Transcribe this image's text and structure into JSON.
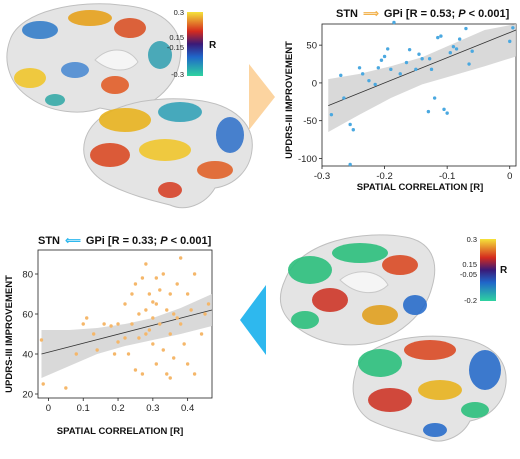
{
  "colors": {
    "arrow_right": "#fcd4a0",
    "arrow_left": "#2eb8ee",
    "dots_top": "#4aa8e0",
    "dots_bottom": "#f5b76a",
    "ci_band": "#d2d2d2"
  },
  "brain_top": {
    "icon": "brain-3d-render",
    "colorbar": {
      "ticks": [
        "0.3",
        "0.15",
        "-0.15",
        "-0.3"
      ],
      "label": "R"
    }
  },
  "brain_bottom": {
    "icon": "brain-3d-render",
    "colorbar": {
      "ticks": [
        "0.3",
        "0.15",
        "-0.05",
        "-0.2"
      ],
      "label": "R"
    }
  },
  "chart_data": [
    {
      "type": "scatter",
      "title_parts": {
        "a": "STN",
        "b": "GPi [R = 0.53; ",
        "p": "P",
        "c": " < 0.001]"
      },
      "xlabel": "SPATIAL CORRELATION [R]",
      "ylabel": "UPDRS-III IMPROVEMENT",
      "xlim": [
        -0.3,
        0.01
      ],
      "ylim": [
        -110,
        78
      ],
      "xticks": [
        "-0.3",
        "-0.2",
        "-0.1",
        "0"
      ],
      "xtick_values": [
        -0.3,
        -0.2,
        -0.1,
        0
      ],
      "yticks": [
        "50",
        "0",
        "-50",
        "-100"
      ],
      "ytick_values": [
        50,
        0,
        -50,
        -100
      ],
      "fit": {
        "x": [
          -0.29,
          0.01
        ],
        "y": [
          -30,
          70
        ]
      },
      "ci_upper": [
        [
          -0.29,
          5
        ],
        [
          -0.24,
          12
        ],
        [
          -0.19,
          22
        ],
        [
          -0.14,
          34
        ],
        [
          -0.09,
          52
        ],
        [
          -0.04,
          70
        ],
        [
          0.01,
          88
        ]
      ],
      "ci_lower": [
        [
          -0.29,
          -65
        ],
        [
          -0.24,
          -42
        ],
        [
          -0.19,
          -20
        ],
        [
          -0.14,
          -2
        ],
        [
          -0.09,
          10
        ],
        [
          -0.04,
          22
        ],
        [
          0.01,
          35
        ]
      ],
      "points": [
        [
          -0.285,
          -42
        ],
        [
          -0.27,
          10
        ],
        [
          -0.265,
          -20
        ],
        [
          -0.255,
          -55
        ],
        [
          -0.25,
          -62
        ],
        [
          -0.255,
          -108
        ],
        [
          -0.24,
          20
        ],
        [
          -0.235,
          12
        ],
        [
          -0.225,
          3
        ],
        [
          -0.215,
          -2
        ],
        [
          -0.21,
          20
        ],
        [
          -0.205,
          30
        ],
        [
          -0.2,
          35
        ],
        [
          -0.195,
          45
        ],
        [
          -0.19,
          18
        ],
        [
          -0.185,
          80
        ],
        [
          -0.175,
          12
        ],
        [
          -0.165,
          27
        ],
        [
          -0.16,
          44
        ],
        [
          -0.15,
          18
        ],
        [
          -0.145,
          38
        ],
        [
          -0.14,
          32
        ],
        [
          -0.13,
          -38
        ],
        [
          -0.128,
          32
        ],
        [
          -0.125,
          18
        ],
        [
          -0.12,
          -20
        ],
        [
          -0.115,
          60
        ],
        [
          -0.11,
          62
        ],
        [
          -0.105,
          -35
        ],
        [
          -0.1,
          -40
        ],
        [
          -0.095,
          40
        ],
        [
          -0.09,
          48
        ],
        [
          -0.085,
          45
        ],
        [
          -0.08,
          58
        ],
        [
          -0.07,
          72
        ],
        [
          -0.065,
          25
        ],
        [
          -0.06,
          42
        ],
        [
          0.0,
          55
        ],
        [
          0.005,
          73
        ]
      ]
    },
    {
      "type": "scatter",
      "title_parts": {
        "a": "STN",
        "b": "GPi [R = 0.33; ",
        "p": "P",
        "c": " < 0.001]"
      },
      "xlabel": "SPATIAL CORRELATION [R]",
      "ylabel": "UPDRS-III IMPROVEMENT",
      "xlim": [
        -0.03,
        0.47
      ],
      "ylim": [
        18,
        92
      ],
      "xticks": [
        "0",
        "0.1",
        "0.2",
        "0.3",
        "0.4"
      ],
      "xtick_values": [
        0,
        0.1,
        0.2,
        0.3,
        0.4
      ],
      "yticks": [
        "80",
        "60",
        "40",
        "20"
      ],
      "ytick_values": [
        80,
        60,
        40,
        20
      ],
      "fit": {
        "x": [
          -0.02,
          0.47
        ],
        "y": [
          40,
          62
        ]
      },
      "ci_upper": [
        [
          -0.02,
          52
        ],
        [
          0.06,
          52
        ],
        [
          0.14,
          53
        ],
        [
          0.22,
          55
        ],
        [
          0.3,
          58
        ],
        [
          0.38,
          63
        ],
        [
          0.47,
          70
        ]
      ],
      "ci_lower": [
        [
          -0.02,
          28
        ],
        [
          0.06,
          34
        ],
        [
          0.14,
          40
        ],
        [
          0.22,
          44
        ],
        [
          0.3,
          47
        ],
        [
          0.38,
          50
        ],
        [
          0.47,
          54
        ]
      ],
      "points": [
        [
          -0.02,
          47
        ],
        [
          -0.015,
          25
        ],
        [
          0.05,
          23
        ],
        [
          0.08,
          40
        ],
        [
          0.1,
          55
        ],
        [
          0.11,
          58
        ],
        [
          0.13,
          50
        ],
        [
          0.14,
          42
        ],
        [
          0.16,
          55
        ],
        [
          0.18,
          54
        ],
        [
          0.19,
          40
        ],
        [
          0.2,
          55
        ],
        [
          0.22,
          65
        ],
        [
          0.23,
          40
        ],
        [
          0.24,
          55
        ],
        [
          0.24,
          70
        ],
        [
          0.25,
          75
        ],
        [
          0.26,
          60
        ],
        [
          0.26,
          48
        ],
        [
          0.27,
          78
        ],
        [
          0.27,
          30
        ],
        [
          0.28,
          62
        ],
        [
          0.28,
          85
        ],
        [
          0.29,
          70
        ],
        [
          0.29,
          52
        ],
        [
          0.3,
          58
        ],
        [
          0.3,
          45
        ],
        [
          0.31,
          65
        ],
        [
          0.31,
          35
        ],
        [
          0.32,
          72
        ],
        [
          0.32,
          55
        ],
        [
          0.33,
          80
        ],
        [
          0.33,
          42
        ],
        [
          0.34,
          62
        ],
        [
          0.34,
          30
        ],
        [
          0.35,
          70
        ],
        [
          0.35,
          50
        ],
        [
          0.36,
          60
        ],
        [
          0.36,
          38
        ],
        [
          0.37,
          75
        ],
        [
          0.38,
          88
        ],
        [
          0.38,
          55
        ],
        [
          0.39,
          45
        ],
        [
          0.4,
          70
        ],
        [
          0.4,
          35
        ],
        [
          0.41,
          62
        ],
        [
          0.42,
          80
        ],
        [
          0.42,
          30
        ],
        [
          0.44,
          50
        ],
        [
          0.45,
          60
        ],
        [
          0.46,
          65
        ],
        [
          0.22,
          48
        ],
        [
          0.25,
          32
        ],
        [
          0.2,
          46
        ],
        [
          0.3,
          66
        ],
        [
          0.35,
          28
        ],
        [
          0.37,
          58
        ],
        [
          0.28,
          50
        ],
        [
          0.31,
          78
        ]
      ]
    }
  ]
}
